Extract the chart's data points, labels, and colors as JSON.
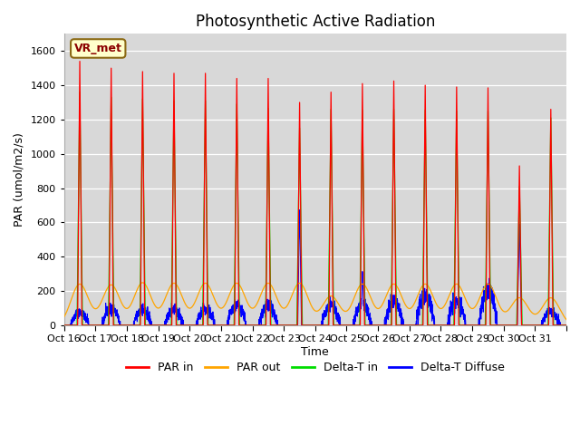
{
  "title": "Photosynthetic Active Radiation",
  "ylabel": "PAR (umol/m2/s)",
  "xlabel": "Time",
  "label_box": "VR_met",
  "ylim": [
    0,
    1700
  ],
  "yticks": [
    0,
    200,
    400,
    600,
    800,
    1000,
    1200,
    1400,
    1600
  ],
  "background_color": "#d8d8d8",
  "fig_background": "#ffffff",
  "xtick_labels": [
    "Oct 16",
    "Oct 17",
    "Oct 18",
    "Oct 19",
    "Oct 20",
    "Oct 21",
    "Oct 22",
    "Oct 23",
    "Oct 24",
    "Oct 25",
    "Oct 26",
    "Oct 27",
    "Oct 28",
    "Oct 29",
    "Oct 30",
    "Oct 31"
  ],
  "series": {
    "PAR_in": {
      "color": "#ff0000",
      "label": "PAR in"
    },
    "PAR_out": {
      "color": "#ffa500",
      "label": "PAR out"
    },
    "Delta_T_in": {
      "color": "#00dd00",
      "label": "Delta-T in"
    },
    "Delta_T_Diffuse": {
      "color": "#0000ff",
      "label": "Delta-T Diffuse"
    }
  },
  "n_days": 16,
  "day_peaks_PAR_in": [
    1540,
    1500,
    1480,
    1470,
    1470,
    1440,
    1440,
    1300,
    1360,
    1410,
    1425,
    1400,
    1390,
    1385,
    930,
    1260
  ],
  "day_peaks_PAR_out": [
    240,
    235,
    248,
    245,
    245,
    245,
    245,
    245,
    170,
    240,
    240,
    240,
    240,
    240,
    160,
    160
  ],
  "day_peaks_DeltaT_in": [
    1360,
    1330,
    1320,
    1310,
    1310,
    1290,
    1265,
    1150,
    1260,
    1255,
    1260,
    1255,
    1250,
    1250,
    810,
    1210
  ],
  "day_peaks_DeltaTDiff_special": {
    "day7_peak": 680,
    "day7_shoulder": 390,
    "day9_peak": 310,
    "day14_peak": 580,
    "day14_shoulder": 420,
    "baseline_days": [
      75,
      95,
      90,
      90,
      95,
      115,
      115,
      0,
      115,
      120,
      135,
      175,
      140,
      200,
      0,
      80
    ]
  },
  "title_fontsize": 12,
  "axis_label_fontsize": 9,
  "tick_fontsize": 8,
  "legend_fontsize": 9
}
